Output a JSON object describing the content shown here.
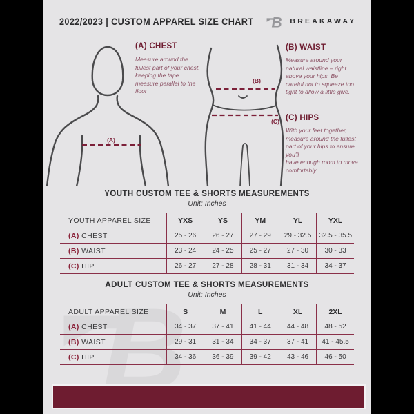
{
  "theme": {
    "page_bg": "#e5e4e6",
    "side_bg": "#000000",
    "maroon_dark": "#6e1c30",
    "maroon_accent": "#8a2138",
    "guide_text": "#8b5063",
    "table_border": "#8a3049",
    "ink": "#2e2e30",
    "figure_line": "#4a4a4c",
    "logo_gray": "#97979b"
  },
  "header": {
    "title": "2022/2023  |  CUSTOM APPAREL SIZE CHART",
    "brand": "BREAKAWAY",
    "logo_glyph": "B"
  },
  "diagram": {
    "chest": {
      "heading": "(A) CHEST",
      "body": "Measure around the fullest part of your chest, keeping the tape measure parallel to the floor",
      "line_label": "(A)"
    },
    "waist": {
      "heading": "(B) WAIST",
      "body": "Measure around your natural waistline – right above your hips. Be careful not to squeeze too tight to allow a little give.",
      "line_label": "(B)"
    },
    "hips": {
      "heading": "(C) HIPS",
      "body": "With your feet together, measure around the fullest part of your hips to ensure you'll\nhave enough room to move comfortably.",
      "line_label": "(C)"
    }
  },
  "youth": {
    "title": "YOUTH CUSTOM TEE & SHORTS MEASUREMENTS",
    "unit": "Unit: Inches",
    "header": [
      "YOUTH APPAREL SIZE",
      "YXS",
      "YS",
      "YM",
      "YL",
      "YXL"
    ],
    "rows": [
      {
        "key": "(A)",
        "label": "CHEST",
        "values": [
          "25 - 26",
          "26 - 27",
          "27 - 29",
          "29 - 32.5",
          "32.5 - 35.5"
        ]
      },
      {
        "key": "(B)",
        "label": "WAIST",
        "values": [
          "23 - 24",
          "24 - 25",
          "25 - 27",
          "27 - 30",
          "30 - 33"
        ]
      },
      {
        "key": "(C)",
        "label": "HIP",
        "values": [
          "26 - 27",
          "27 - 28",
          "28 - 31",
          "31 - 34",
          "34 - 37"
        ]
      }
    ]
  },
  "adult": {
    "title": "ADULT CUSTOM TEE & SHORTS MEASUREMENTS",
    "unit": "Unit: Inches",
    "header": [
      "ADULT APPAREL SIZE",
      "S",
      "M",
      "L",
      "XL",
      "2XL"
    ],
    "rows": [
      {
        "key": "(A)",
        "label": "CHEST",
        "values": [
          "34 - 37",
          "37 - 41",
          "41 - 44",
          "44 - 48",
          "48 - 52"
        ]
      },
      {
        "key": "(B)",
        "label": "WAIST",
        "values": [
          "29 - 31",
          "31 - 34",
          "34 - 37",
          "37 - 41",
          "41 - 45.5"
        ]
      },
      {
        "key": "(C)",
        "label": "HIP",
        "values": [
          "34 - 36",
          "36 - 39",
          "39 - 42",
          "43 - 46",
          "46 - 50"
        ]
      }
    ]
  }
}
